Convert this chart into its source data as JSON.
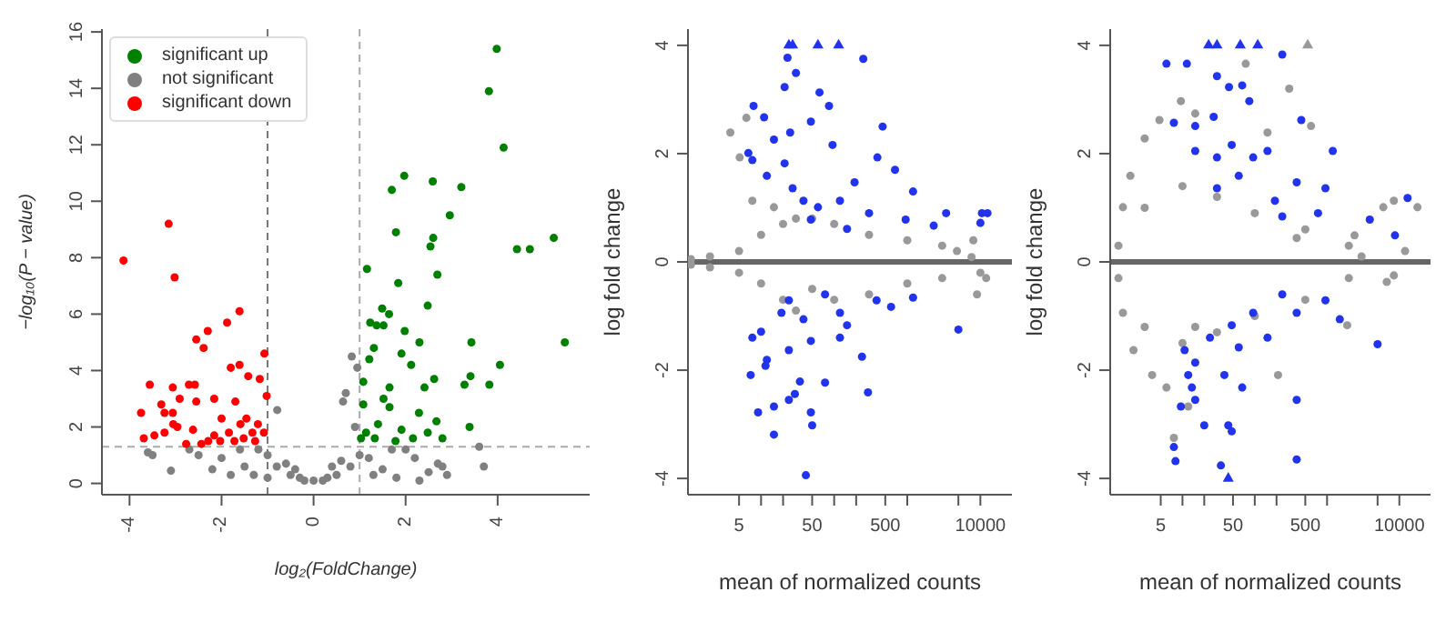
{
  "chart_data": [
    {
      "type": "scatter",
      "xlabel": "log₂(FoldChange)",
      "ylabel": "−log₁₀(P − value)",
      "xlim": [
        -4.6,
        6
      ],
      "ylim": [
        -0.4,
        16.1
      ],
      "xticks": [
        -4,
        -2,
        0,
        2,
        4
      ],
      "yticks": [
        0,
        2,
        4,
        6,
        8,
        10,
        12,
        14,
        16
      ],
      "legend": "top left",
      "marker": "circle",
      "ref_lines": [
        {
          "axis": "x",
          "value": -1,
          "color": "#777777",
          "line_style": "dashed"
        },
        {
          "axis": "x",
          "value": 1,
          "color": "#aaaaaa",
          "line_style": "dashed"
        },
        {
          "axis": "y",
          "value": 1.3,
          "color": "#aaaaaa",
          "line_style": "dashed"
        }
      ],
      "series": [
        {
          "name": "significant up",
          "color": "#008000",
          "x": [
            3.98,
            3.81,
            4.13,
            1.97,
            1.7,
            2.59,
            3.21,
            2.96,
            1.79,
            2.6,
            2.54,
            4.42,
            4.7,
            5.22,
            1.16,
            1.84,
            2.69,
            2.48,
            1.49,
            1.64,
            1.23,
            1.37,
            1.52,
            1.98,
            2.3,
            3.43,
            5.46,
            4.05,
            1.31,
            1.91,
            2.12,
            1.21,
            3.41,
            3.28,
            3.82,
            2.62,
            2.41,
            1.65,
            1.08,
            3.39,
            2.67,
            2.8,
            2.29,
            1.65,
            1.4,
            1.14,
            1.91,
            2.16,
            1.33,
            1.08,
            1.52,
            1.78,
            2.48,
            1.03
          ],
          "values": [
            15.4,
            13.9,
            11.9,
            10.9,
            10.4,
            10.7,
            10.5,
            9.5,
            8.9,
            8.7,
            8.4,
            8.3,
            8.3,
            8.7,
            7.6,
            7.1,
            7.4,
            6.3,
            6.2,
            6,
            5.7,
            5.6,
            5.6,
            5.4,
            5,
            5,
            5,
            4.2,
            4.8,
            4.6,
            4.2,
            4.4,
            3.8,
            3.5,
            3.5,
            3.7,
            3.4,
            3.4,
            3.6,
            2,
            2.2,
            1.6,
            2.5,
            2.7,
            2.1,
            1.8,
            1.9,
            1.6,
            1.6,
            2.8,
            3,
            1.5,
            1.8,
            1.6
          ]
        },
        {
          "name": "not significant",
          "color": "#808080",
          "x": [
            0,
            0.2,
            -0.2,
            0.5,
            -0.5,
            0.8,
            -0.8,
            1,
            -1,
            0.9,
            0.83,
            0.95,
            0.64,
            0.7,
            -0.79,
            -2.5,
            -2.2,
            -1.8,
            -1.5,
            -1.2,
            -1,
            -3.6,
            -3.5,
            -3.1,
            -2.7,
            2.9,
            2.8,
            2.7,
            2.5,
            2.2,
            1.8,
            1.5,
            2,
            1.2,
            3.6,
            3.7,
            0.3,
            -0.3,
            0.6,
            -0.6,
            1.3,
            -1.3,
            2.3,
            -2,
            -1.6,
            1.7,
            0.4,
            -0.4
          ],
          "values": [
            0.1,
            0.1,
            0.1,
            0.3,
            0.3,
            0.6,
            0.6,
            1,
            1,
            2,
            4.5,
            4.1,
            2.9,
            3.2,
            2.6,
            1,
            0.5,
            0.3,
            0.6,
            1.2,
            0.2,
            1.1,
            1,
            0.45,
            1.2,
            0.3,
            0.6,
            0.7,
            0.4,
            0.9,
            0.2,
            0.5,
            1.2,
            0.9,
            1.3,
            0.6,
            0.2,
            0.2,
            0.8,
            0.7,
            0.3,
            0.3,
            0.1,
            0.9,
            1.2,
            1.2,
            0.6,
            0.5
          ]
        },
        {
          "name": "significant down",
          "color": "#ff0000",
          "x": [
            -4.13,
            -3.15,
            -3.02,
            -1.61,
            -1.88,
            -2.3,
            -2.55,
            -2.39,
            -1.07,
            -1.8,
            -1.61,
            -3.56,
            -3.06,
            -2.71,
            -2.58,
            -1.42,
            -1.17,
            -3.31,
            -2.91,
            -2.55,
            -2.16,
            -1.7,
            -3.75,
            -3.24,
            -3.06,
            -3.05,
            -2.96,
            -2.62,
            -3.69,
            -3.46,
            -3.24,
            -2.77,
            -2.44,
            -2.29,
            -2.16,
            -2,
            -1.84,
            -1.59,
            -1.46,
            -1.33,
            -1.21,
            -1.08,
            -1.02,
            -1.52,
            -1.27,
            -1.72,
            -2.03
          ],
          "values": [
            7.9,
            9.2,
            7.3,
            6.1,
            5.7,
            5.4,
            5.1,
            4.8,
            4.6,
            4.1,
            4.2,
            3.5,
            3.4,
            3.5,
            3.5,
            3.8,
            3.7,
            2.8,
            3,
            2.9,
            3,
            2.9,
            2.5,
            2.5,
            2.5,
            2.1,
            2,
            1.9,
            1.6,
            1.7,
            1.8,
            1.4,
            1.4,
            1.5,
            1.7,
            2.3,
            1.8,
            2.1,
            2.3,
            1.8,
            2.1,
            1.8,
            3.1,
            1.6,
            1.5,
            1.5,
            1.5
          ]
        }
      ]
    },
    {
      "type": "scatter",
      "xlabel": "mean of normalized counts",
      "ylabel": "log fold change",
      "log": "x",
      "xlim": [
        1,
        27000
      ],
      "ylim": [
        -4.3,
        4.3
      ],
      "xticks": [
        5,
        {
          "value": 10,
          "label": null
        },
        {
          "value": 20,
          "label": null
        },
        50,
        {
          "value": 100,
          "label": null
        },
        {
          "value": 200,
          "label": null
        },
        500,
        {
          "value": 1000,
          "label": null
        },
        {
          "value": 5000,
          "label": null
        },
        10000
      ],
      "yticks": [
        -4,
        -2,
        0,
        2,
        4
      ],
      "marker": "circle",
      "ref_lines": [
        {
          "axis": "y",
          "value": 0,
          "color": "#666666",
          "line_style": "solid"
        }
      ],
      "series": [
        {
          "color": "#999999",
          "x": [
            1.1,
            1.1,
            2,
            2,
            5,
            5,
            10,
            10,
            20,
            20,
            30,
            30,
            50,
            50,
            100,
            100,
            300,
            300,
            1000,
            1000,
            3000,
            3000,
            8000,
            10000,
            9000,
            3.8,
            5.1,
            6.3,
            15,
            7.6,
            4780,
            7570,
            12000
          ],
          "values": [
            0.05,
            -0.05,
            0.1,
            -0.1,
            0.2,
            -0.2,
            0.5,
            -0.4,
            0.7,
            -0.7,
            0.8,
            -0.9,
            0.8,
            -0.5,
            0.7,
            -0.7,
            0.5,
            -0.6,
            0.4,
            -0.4,
            0.3,
            -0.3,
            0.4,
            -0.2,
            -0.6,
            2.39,
            1.93,
            2.66,
            1.01,
            1.13,
            0.2,
            0.09,
            -0.3
          ]
        },
        {
          "color": "#2233ee",
          "x": [
            250,
            23,
            30,
            21,
            63,
            85,
            7.9,
            11,
            460,
            48,
            25,
            15,
            6.7,
            95,
            390,
            680,
            1200,
            190,
            27,
            12,
            60,
            120,
            300,
            950,
            3400,
            10500,
            12500,
            10000,
            2300,
            38,
            21,
            7.6,
            48,
            150,
            75,
            24,
            120,
            38,
            19,
            380,
            1200,
            10,
            7.6,
            12,
            11.5,
            7.2,
            9.1,
            15,
            24,
            15,
            29,
            34,
            48,
            50,
            75,
            290,
            41,
            24,
            48,
            120,
            240,
            600,
            5000,
            150
          ],
          "values": [
            3.75,
            3.77,
            3.49,
            3.23,
            3.13,
            2.88,
            2.88,
            2.67,
            2.5,
            2.59,
            2.39,
            2.26,
            2.01,
            2.16,
            1.93,
            1.7,
            1.3,
            1.47,
            1.36,
            1.59,
            1.01,
            1.13,
            0.9,
            0.78,
            0.9,
            0.9,
            0.9,
            0.72,
            0.67,
            1.13,
            1.82,
            1.88,
            0.78,
            0.61,
            -0.6,
            -0.71,
            -0.94,
            -1.06,
            -0.94,
            -0.71,
            -0.66,
            -1.29,
            -1.4,
            -1.81,
            -1.92,
            -2.09,
            -2.78,
            -2.67,
            -2.55,
            -3.19,
            -2.44,
            -2.21,
            -2.78,
            -3.02,
            -2.23,
            -2.41,
            -3.94,
            -1.63,
            -1.46,
            -1.4,
            -1.75,
            -0.83,
            -1.25,
            -1.17
          ]
        },
        {
          "color": "#2233ee",
          "marker": "triangle",
          "x": [
            24,
            27,
            60,
            115
          ],
          "values": [
            4,
            4,
            4,
            4
          ]
        }
      ]
    },
    {
      "type": "scatter",
      "xlabel": "mean of normalized counts",
      "ylabel": "log fold change",
      "log": "x",
      "xlim": [
        1,
        27000
      ],
      "ylim": [
        -4.3,
        4.3
      ],
      "xticks": [
        5,
        {
          "value": 10,
          "label": null
        },
        {
          "value": 20,
          "label": null
        },
        50,
        {
          "value": 100,
          "label": null
        },
        {
          "value": 200,
          "label": null
        },
        500,
        {
          "value": 1000,
          "label": null
        },
        {
          "value": 5000,
          "label": null
        },
        10000
      ],
      "yticks": [
        -4,
        -2,
        0,
        2,
        4
      ],
      "marker": "circle",
      "ref_lines": [
        {
          "axis": "y",
          "value": 0,
          "color": "#666666",
          "line_style": "solid"
        }
      ],
      "series": [
        {
          "color": "#999999",
          "x": [
            1.5,
            1.5,
            1.9,
            2.1,
            3,
            4.8,
            3.8,
            6,
            9.5,
            15,
            12,
            7.6,
            15,
            1.3,
            1.3,
            3,
            3,
            10,
            10,
            30,
            30,
            100,
            100,
            500,
            500,
            2000,
            2000,
            3000,
            150,
            300,
            600,
            75,
            380,
            2400,
            6000,
            8400,
            12000,
            17800,
            8400,
            6700,
            1900,
            210
          ],
          "values": [
            1.01,
            -0.94,
            1.59,
            -1.63,
            2.28,
            2.62,
            -2.09,
            -2.32,
            2.97,
            2.74,
            -2.67,
            -3.25,
            -1.2,
            0.3,
            -0.3,
            1,
            -1.2,
            1.4,
            -1.5,
            1.2,
            -1.3,
            0.9,
            -1,
            0.6,
            -0.7,
            0.3,
            -0.3,
            0.1,
            2.39,
            3.2,
            2.51,
            3.66,
            0.44,
            0.49,
            1.01,
            1.13,
            0.2,
            1.01,
            -0.25,
            -0.37,
            -1.17,
            -2.09
          ]
        },
        {
          "color": "#2233ee",
          "x": [
            6,
            11.5,
            30,
            44,
            67,
            84,
            240,
            440,
            27,
            7.6,
            15,
            48,
            95,
            150,
            1200,
            380,
            950,
            60,
            30,
            190,
            750,
            3900,
            8700,
            13000,
            30,
            240,
            15,
            240,
            95,
            48,
            380,
            950,
            24,
            15,
            12,
            13.5,
            9.5,
            15,
            20,
            7.6,
            8,
            38,
            43,
            48,
            34,
            380,
            380,
            5000,
            150,
            67,
            1500,
            60,
            10.7
          ],
          "values": [
            3.66,
            3.66,
            3.43,
            3.23,
            3.26,
            2.97,
            3.83,
            2.62,
            2.68,
            2.57,
            2.51,
            2.16,
            1.93,
            2.05,
            2.05,
            1.47,
            1.36,
            1.59,
            1.36,
            1.13,
            0.9,
            0.78,
            0.49,
            1.18,
            1.93,
            0.84,
            2.05,
            -0.6,
            -0.94,
            -1.17,
            -0.94,
            -0.71,
            -1.4,
            -1.86,
            -2.09,
            -2.32,
            -2.67,
            -2.55,
            -3.02,
            -3.42,
            -3.68,
            -2.09,
            -3.02,
            -3.13,
            -3.76,
            -3.65,
            -2.55,
            -1.52,
            -1.4,
            -2.32,
            -1.06,
            -1.58,
            -1.63
          ]
        },
        {
          "color": "#2233ee",
          "marker": "triangle",
          "x": [
            23,
            30,
            63,
            110,
            43
          ],
          "values": [
            4,
            4,
            4,
            4,
            -4
          ]
        },
        {
          "color": "#999999",
          "marker": "triangle",
          "x": [
            540
          ],
          "values": [
            4
          ]
        }
      ]
    }
  ]
}
